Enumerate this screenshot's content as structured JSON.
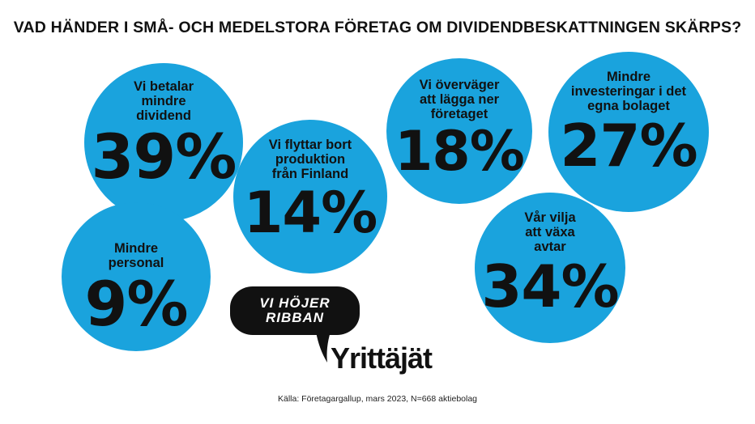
{
  "colors": {
    "bubble": "#1aa3dd",
    "text": "#111111",
    "logo": "#111111"
  },
  "chart_data": {
    "type": "bubble-stat",
    "title": "VAD HÄNDER I SMÅ- OCH MEDELSTORA FÖRETAG OM DIVIDENDBESKATTNINGEN SKÄRPS?",
    "items": [
      {
        "label": "Vi betalar\nmindre\ndividend",
        "value": 39,
        "display": "39%"
      },
      {
        "label": "Vi flyttar bort\nproduktion\nfrån Finland",
        "value": 14,
        "display": "14%"
      },
      {
        "label": "Vi överväger\natt lägga ner\nföretaget",
        "value": 18,
        "display": "18%"
      },
      {
        "label": "Mindre\ninvesteringar i det\negna bolaget",
        "value": 27,
        "display": "27%"
      },
      {
        "label": "Mindre\npersonal",
        "value": 9,
        "display": "9%"
      },
      {
        "label": "Vår vilja\natt växa\navtar",
        "value": 34,
        "display": "34%"
      }
    ],
    "source": "Källa: Företagargallup, mars 2023, N=668 aktiebolag"
  },
  "logo": {
    "line1": "VI HÖJER",
    "line2": "RIBBAN",
    "brand": "Yrittäjät"
  }
}
